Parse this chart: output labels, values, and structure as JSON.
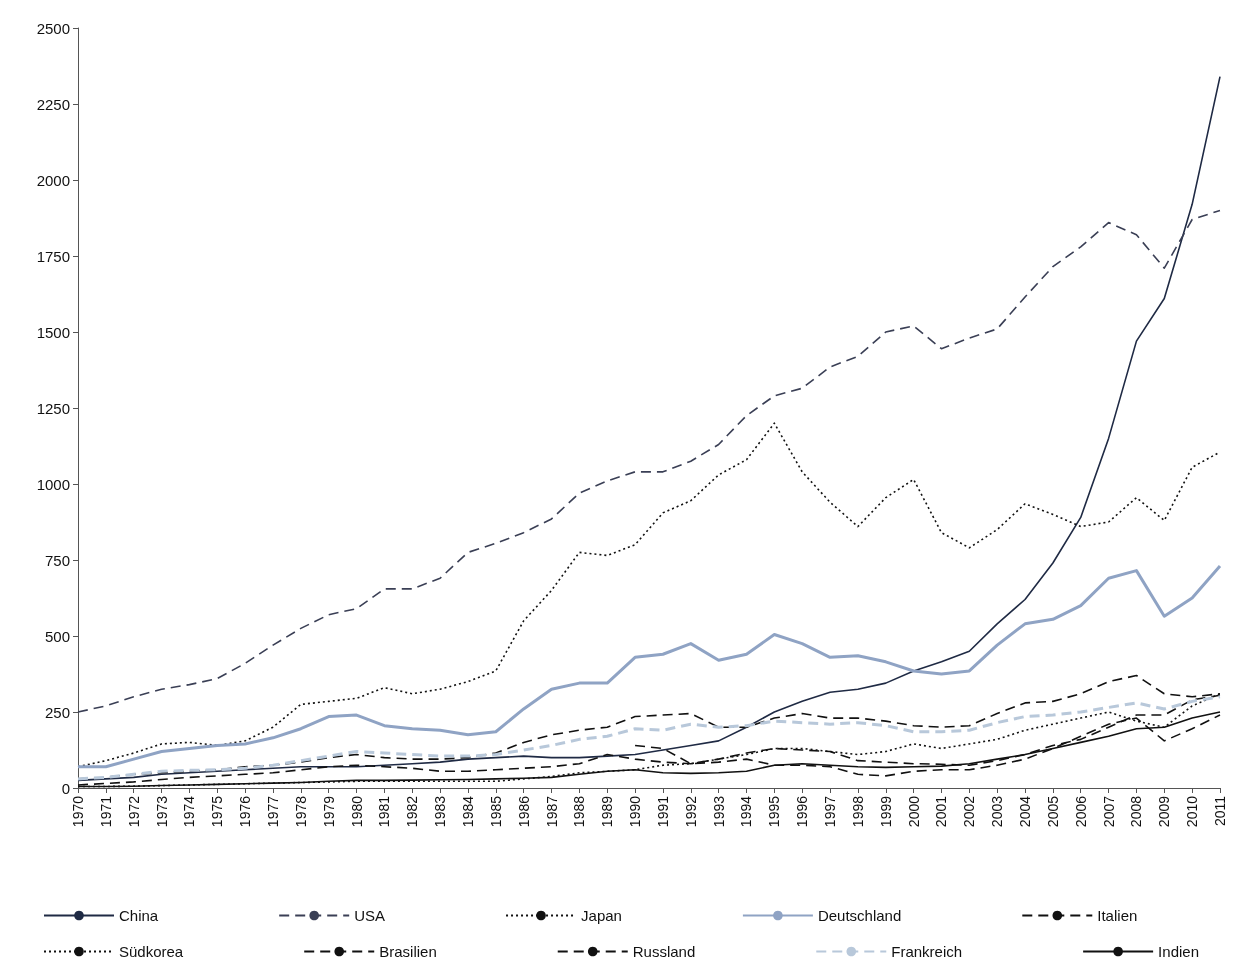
{
  "chart_data": {
    "type": "line",
    "categories": [
      "1970",
      "1971",
      "1972",
      "1973",
      "1974",
      "1975",
      "1976",
      "1977",
      "1978",
      "1979",
      "1980",
      "1981",
      "1982",
      "1983",
      "1984",
      "1985",
      "1986",
      "1987",
      "1988",
      "1989",
      "1990",
      "1991",
      "1992",
      "1993",
      "1994",
      "1995",
      "1996",
      "1997",
      "1998",
      "1999",
      "2000",
      "2001",
      "2002",
      "2003",
      "2004",
      "2005",
      "2006",
      "2007",
      "2008",
      "2009",
      "2010",
      "2011"
    ],
    "series": [
      {
        "name": "China",
        "color": "#1f2a44",
        "line_style": "solid",
        "values": [
          25,
          30,
          35,
          45,
          50,
          55,
          60,
          65,
          70,
          70,
          70,
          75,
          80,
          85,
          95,
          100,
          105,
          100,
          100,
          105,
          110,
          125,
          140,
          155,
          200,
          250,
          285,
          315,
          325,
          345,
          385,
          415,
          450,
          540,
          620,
          740,
          890,
          1150,
          1470,
          1610,
          1920,
          2340
        ]
      },
      {
        "name": "USA",
        "color": "#3a3f55",
        "line_style": "dashed",
        "values": [
          250,
          270,
          300,
          325,
          340,
          360,
          410,
          470,
          525,
          570,
          590,
          655,
          655,
          690,
          775,
          805,
          840,
          885,
          970,
          1010,
          1040,
          1040,
          1075,
          1130,
          1225,
          1290,
          1315,
          1385,
          1420,
          1500,
          1520,
          1445,
          1480,
          1510,
          1615,
          1715,
          1780,
          1860,
          1820,
          1710,
          1870,
          1900
        ]
      },
      {
        "name": "Japan",
        "color": "#111111",
        "line_style": "dotted",
        "values": [
          70,
          90,
          115,
          145,
          150,
          140,
          155,
          200,
          275,
          285,
          295,
          330,
          310,
          325,
          350,
          385,
          550,
          650,
          775,
          765,
          800,
          905,
          945,
          1030,
          1080,
          1200,
          1040,
          940,
          860,
          955,
          1015,
          840,
          790,
          850,
          935,
          900,
          860,
          875,
          955,
          880,
          1055,
          1105
        ]
      },
      {
        "name": "Deutschland",
        "color": "#8fa3c4",
        "line_style": "solid",
        "values": [
          70,
          70,
          95,
          120,
          130,
          140,
          145,
          165,
          195,
          235,
          240,
          205,
          195,
          190,
          175,
          185,
          260,
          325,
          345,
          345,
          430,
          440,
          475,
          420,
          440,
          505,
          475,
          430,
          435,
          415,
          385,
          375,
          385,
          470,
          540,
          555,
          600,
          690,
          715,
          565,
          625,
          730
        ]
      },
      {
        "name": "Italien",
        "color": "#111111",
        "line_style": "dashed",
        "values": [
          30,
          35,
          45,
          50,
          55,
          60,
          70,
          75,
          85,
          100,
          110,
          100,
          95,
          95,
          100,
          115,
          150,
          175,
          190,
          200,
          235,
          240,
          245,
          200,
          200,
          230,
          245,
          230,
          230,
          220,
          205,
          200,
          205,
          245,
          280,
          285,
          310,
          350,
          370,
          310,
          300,
          310
        ]
      },
      {
        "name": "Südkorea",
        "color": "#111111",
        "line_style": "dotted",
        "values": [
          5,
          5,
          6,
          8,
          10,
          12,
          14,
          16,
          18,
          20,
          22,
          22,
          22,
          22,
          22,
          22,
          30,
          38,
          50,
          55,
          60,
          75,
          80,
          95,
          110,
          130,
          130,
          120,
          110,
          120,
          145,
          130,
          145,
          160,
          190,
          210,
          230,
          250,
          220,
          200,
          270,
          310
        ]
      },
      {
        "name": "Brasilien",
        "color": "#111111",
        "line_style": "dashed",
        "values": [
          10,
          15,
          20,
          28,
          35,
          40,
          45,
          50,
          60,
          70,
          75,
          70,
          65,
          55,
          55,
          60,
          65,
          70,
          80,
          110,
          95,
          85,
          80,
          95,
          115,
          130,
          125,
          120,
          90,
          85,
          80,
          78,
          75,
          90,
          110,
          140,
          160,
          200,
          240,
          240,
          290,
          305
        ]
      },
      {
        "name": "Russland",
        "color": "#111111",
        "line_style": "dashed",
        "values": [
          null,
          null,
          null,
          null,
          null,
          null,
          null,
          null,
          null,
          null,
          null,
          null,
          null,
          null,
          null,
          null,
          null,
          null,
          null,
          null,
          140,
          130,
          80,
          85,
          95,
          75,
          75,
          70,
          45,
          40,
          55,
          60,
          60,
          75,
          95,
          130,
          170,
          210,
          230,
          155,
          195,
          240
        ]
      },
      {
        "name": "Frankreich",
        "color": "#b8c8da",
        "line_style": "dashed",
        "values": [
          30,
          35,
          45,
          55,
          58,
          60,
          65,
          75,
          90,
          105,
          120,
          115,
          110,
          105,
          105,
          110,
          125,
          140,
          160,
          170,
          195,
          190,
          210,
          200,
          205,
          220,
          215,
          210,
          215,
          205,
          185,
          185,
          190,
          215,
          235,
          240,
          250,
          265,
          280,
          260,
          285,
          300
        ]
      },
      {
        "name": "Indien",
        "color": "#111111",
        "line_style": "solid",
        "values": [
          5,
          5,
          6,
          8,
          10,
          12,
          14,
          16,
          18,
          22,
          25,
          25,
          26,
          27,
          28,
          30,
          32,
          35,
          45,
          55,
          60,
          50,
          48,
          50,
          55,
          75,
          80,
          75,
          70,
          68,
          70,
          72,
          80,
          95,
          110,
          130,
          150,
          170,
          195,
          200,
          230,
          250
        ]
      }
    ],
    "ylim": [
      0,
      2500
    ],
    "yticks": [
      0,
      250,
      500,
      750,
      1000,
      1250,
      1500,
      1750,
      2000,
      2250,
      2500
    ],
    "grid": false,
    "legend": "bottom",
    "marker": "none"
  }
}
